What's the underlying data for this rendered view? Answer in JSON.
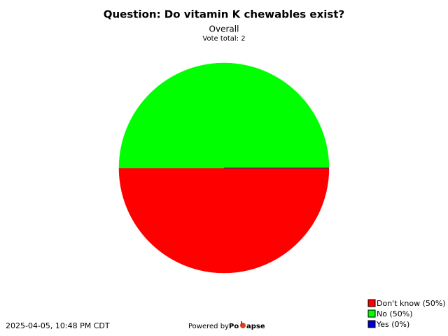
{
  "chart_data": {
    "type": "pie",
    "title": "Question: Do vitamin K chewables exist?",
    "subtitle": "Overall",
    "annotation": "Vote total: 2",
    "values": [
      50,
      50,
      0
    ],
    "labels": [
      "Don't know (50%)",
      "No (50%)",
      "Yes (0%)"
    ],
    "colors": [
      "#ff0000",
      "#00ff00",
      "#0000cc"
    ],
    "legend": "lower-right"
  },
  "footer": {
    "timestamp": "2025-04-05, 10:48 PM CDT",
    "powered_by": "Powered by",
    "brand_start": "Po",
    "brand_end": "apse"
  }
}
